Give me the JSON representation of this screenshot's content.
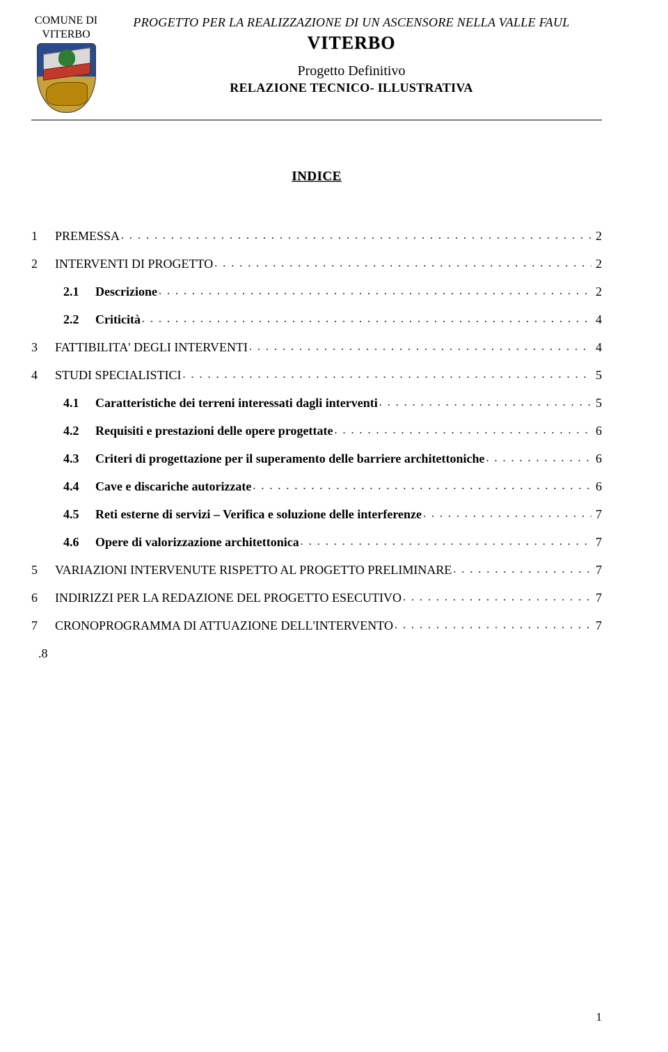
{
  "header": {
    "comune_line1": "COMUNE DI",
    "comune_line2": "VITERBO",
    "project_line": "PROGETTO PER LA REALIZZAZIONE DI UN ASCENSORE  NELLA VALLE FAUL",
    "project_main": "VITERBO",
    "subtitle": "Progetto Definitivo",
    "relation": "RELAZIONE TECNICO- ILLUSTRATIVA"
  },
  "indice_title": "INDICE",
  "toc": [
    {
      "num": "1",
      "text": "PREMESSA",
      "page": "2",
      "bold": false,
      "indent": false
    },
    {
      "num": "2",
      "text": "INTERVENTI DI PROGETTO",
      "page": "2",
      "bold": false,
      "indent": false
    },
    {
      "num": "2.1",
      "text": "Descrizione",
      "page": "2",
      "bold": true,
      "indent": true
    },
    {
      "num": "2.2",
      "text": "Criticità",
      "page": "4",
      "bold": true,
      "indent": true
    },
    {
      "num": "3",
      "text": "FATTIBILITA' DEGLI INTERVENTI",
      "page": "4",
      "bold": false,
      "indent": false
    },
    {
      "num": "4",
      "text": "STUDI SPECIALISTICI",
      "page": "5",
      "bold": false,
      "indent": false
    },
    {
      "num": "4.1",
      "text": "Caratteristiche dei terreni interessati dagli interventi",
      "page": "5",
      "bold": true,
      "indent": true
    },
    {
      "num": "4.2",
      "text": "Requisiti e prestazioni delle opere progettate",
      "page": "6",
      "bold": true,
      "indent": true
    },
    {
      "num": "4.3",
      "text": "Criteri di progettazione per il superamento delle barriere architettoniche",
      "page": "6",
      "bold": true,
      "indent": true
    },
    {
      "num": "4.4",
      "text": "Cave e discariche autorizzate",
      "page": "6",
      "bold": true,
      "indent": true
    },
    {
      "num": "4.5",
      "text": "Reti esterne di servizi – Verifica e soluzione delle interferenze",
      "page": "7",
      "bold": true,
      "indent": true
    },
    {
      "num": "4.6",
      "text": "Opere di valorizzazione architettonica",
      "page": "7",
      "bold": true,
      "indent": true
    },
    {
      "num": "5",
      "text": "VARIAZIONI INTERVENUTE RISPETTO AL PROGETTO PRELIMINARE",
      "page": "7",
      "bold": false,
      "indent": false
    },
    {
      "num": "6",
      "text": "INDIRIZZI PER LA REDAZIONE DEL PROGETTO ESECUTIVO",
      "page": "7",
      "bold": false,
      "indent": false
    },
    {
      "num": "7",
      "text": "CRONOPROGRAMMA DI ATTUAZIONE DELL'INTERVENTO",
      "page": "7",
      "bold": false,
      "indent": false
    }
  ],
  "trailing_dot8": ".8",
  "page_number": "1"
}
